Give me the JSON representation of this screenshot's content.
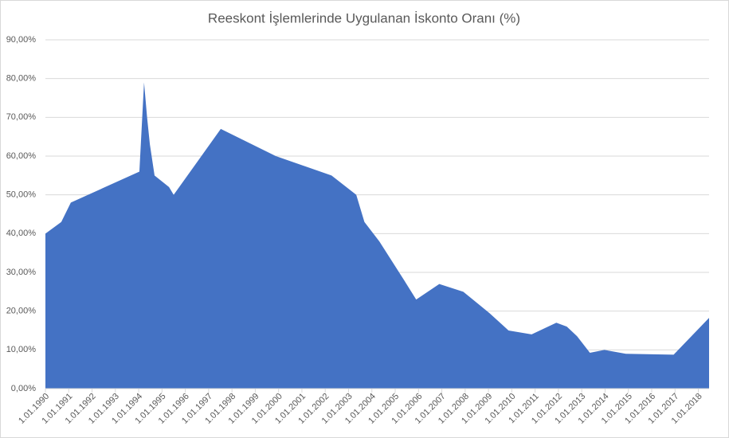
{
  "chart_data": {
    "type": "area",
    "title": "Reeskont İşlemlerinde Uygulanan İskonto Oranı (%)",
    "x": [
      1990,
      1990.68,
      1991.09,
      1994.03,
      1994.23,
      1994.36,
      1994.48,
      1994.68,
      1995.3,
      1995.5,
      1997.52,
      1999.88,
      2002.27,
      2003.33,
      2003.68,
      2004.32,
      2005.38,
      2005.9,
      2006.89,
      2007.92,
      2009.04,
      2009.86,
      2010.85,
      2011.91,
      2012.36,
      2012.8,
      2013.35,
      2013.97,
      2014.89,
      2016.94,
      2018.46
    ],
    "values": [
      40,
      43,
      48,
      56,
      79,
      70,
      63,
      55,
      52,
      50,
      67,
      60,
      55,
      50,
      43,
      38,
      28,
      23,
      27,
      25,
      19.5,
      15,
      14,
      17,
      16,
      13.5,
      9.25,
      10,
      9,
      8.75,
      18.25
    ],
    "color": "#4472c4",
    "xlim": [
      1990,
      2018.46
    ],
    "xticks": [
      {
        "value": 1990,
        "label": "1.01.1990"
      },
      {
        "value": 1991,
        "label": "1.01.1991"
      },
      {
        "value": 1992,
        "label": "1.01.1992"
      },
      {
        "value": 1993,
        "label": "1.01.1993"
      },
      {
        "value": 1994,
        "label": "1.01.1994"
      },
      {
        "value": 1995,
        "label": "1.01.1995"
      },
      {
        "value": 1996,
        "label": "1.01.1996"
      },
      {
        "value": 1997,
        "label": "1.01.1997"
      },
      {
        "value": 1998,
        "label": "1.01.1998"
      },
      {
        "value": 1999,
        "label": "1.01.1999"
      },
      {
        "value": 2000,
        "label": "1.01.2000"
      },
      {
        "value": 2001,
        "label": "1.01.2001"
      },
      {
        "value": 2002,
        "label": "1.01.2002"
      },
      {
        "value": 2003,
        "label": "1.01.2003"
      },
      {
        "value": 2004,
        "label": "1.01.2004"
      },
      {
        "value": 2005,
        "label": "1.01.2005"
      },
      {
        "value": 2006,
        "label": "1.01.2006"
      },
      {
        "value": 2007,
        "label": "1.01.2007"
      },
      {
        "value": 2008,
        "label": "1.01.2008"
      },
      {
        "value": 2009,
        "label": "1.01.2009"
      },
      {
        "value": 2010,
        "label": "1.01.2010"
      },
      {
        "value": 2011,
        "label": "1.01.2011"
      },
      {
        "value": 2012,
        "label": "1.01.2012"
      },
      {
        "value": 2013,
        "label": "1.01.2013"
      },
      {
        "value": 2014,
        "label": "1.01.2014"
      },
      {
        "value": 2015,
        "label": "1.01.2015"
      },
      {
        "value": 2016,
        "label": "1.01.2016"
      },
      {
        "value": 2017,
        "label": "1.01.2017"
      },
      {
        "value": 2018,
        "label": "1.01.2018"
      }
    ],
    "ylim": [
      0,
      90
    ],
    "yticks": [
      {
        "value": 0,
        "label": "0,00%"
      },
      {
        "value": 10,
        "label": "10,00%"
      },
      {
        "value": 20,
        "label": "20,00%"
      },
      {
        "value": 30,
        "label": "30,00%"
      },
      {
        "value": 40,
        "label": "40,00%"
      },
      {
        "value": 50,
        "label": "50,00%"
      },
      {
        "value": 60,
        "label": "60,00%"
      },
      {
        "value": 70,
        "label": "70,00%"
      },
      {
        "value": 80,
        "label": "80,00%"
      },
      {
        "value": 90,
        "label": "90,00%"
      }
    ],
    "grid": true
  }
}
